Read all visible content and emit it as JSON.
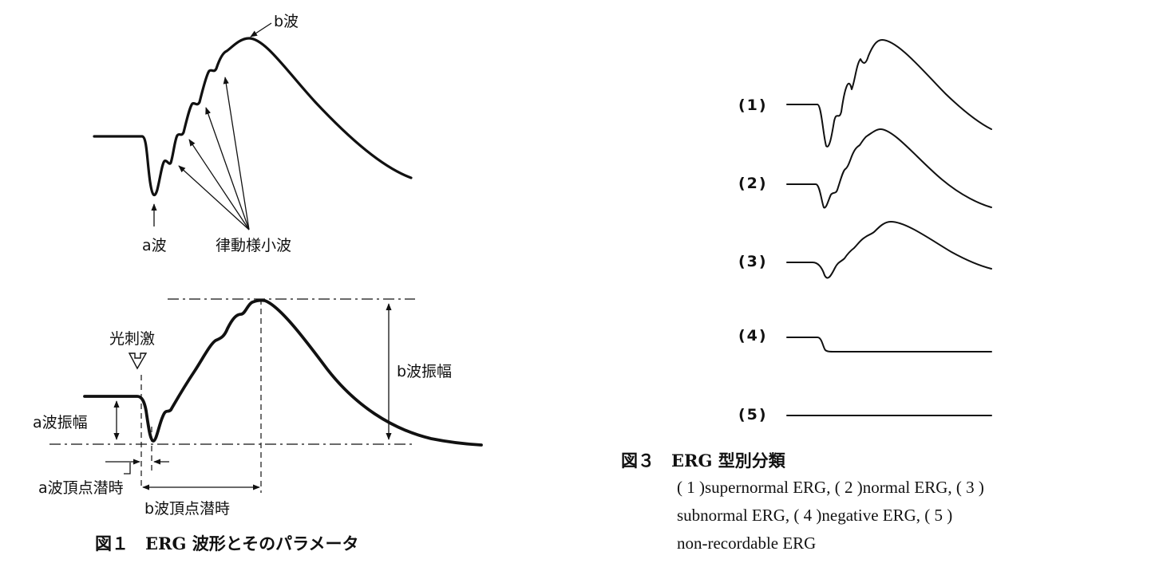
{
  "figure1": {
    "top": {
      "b_wave_label": "b波",
      "a_wave_label": "a波",
      "op_label": "律動様小波"
    },
    "bottom": {
      "stimulus_label": "光刺激",
      "b_amp_label": "b波振幅",
      "a_amp_label": "a波振幅",
      "a_latency_label": "a波頂点潜時",
      "b_latency_label": "b波頂点潜時"
    },
    "caption": "図１　ERG 波形とそのパラメータ"
  },
  "figure3": {
    "traces": [
      {
        "label": "(1)",
        "type": "supernormal"
      },
      {
        "label": "(2)",
        "type": "normal"
      },
      {
        "label": "(3)",
        "type": "subnormal"
      },
      {
        "label": "(4)",
        "type": "negative"
      },
      {
        "label": "(5)",
        "type": "non-recordable"
      }
    ],
    "caption_title": "図３　ERG 型別分類",
    "caption_lines": [
      "( 1 )supernormal ERG, ( 2 )normal ERG, ( 3 )",
      "subnormal  ERG,  ( 4 )negative  ERG,  ( 5 )",
      "non-recordable ERG"
    ]
  }
}
